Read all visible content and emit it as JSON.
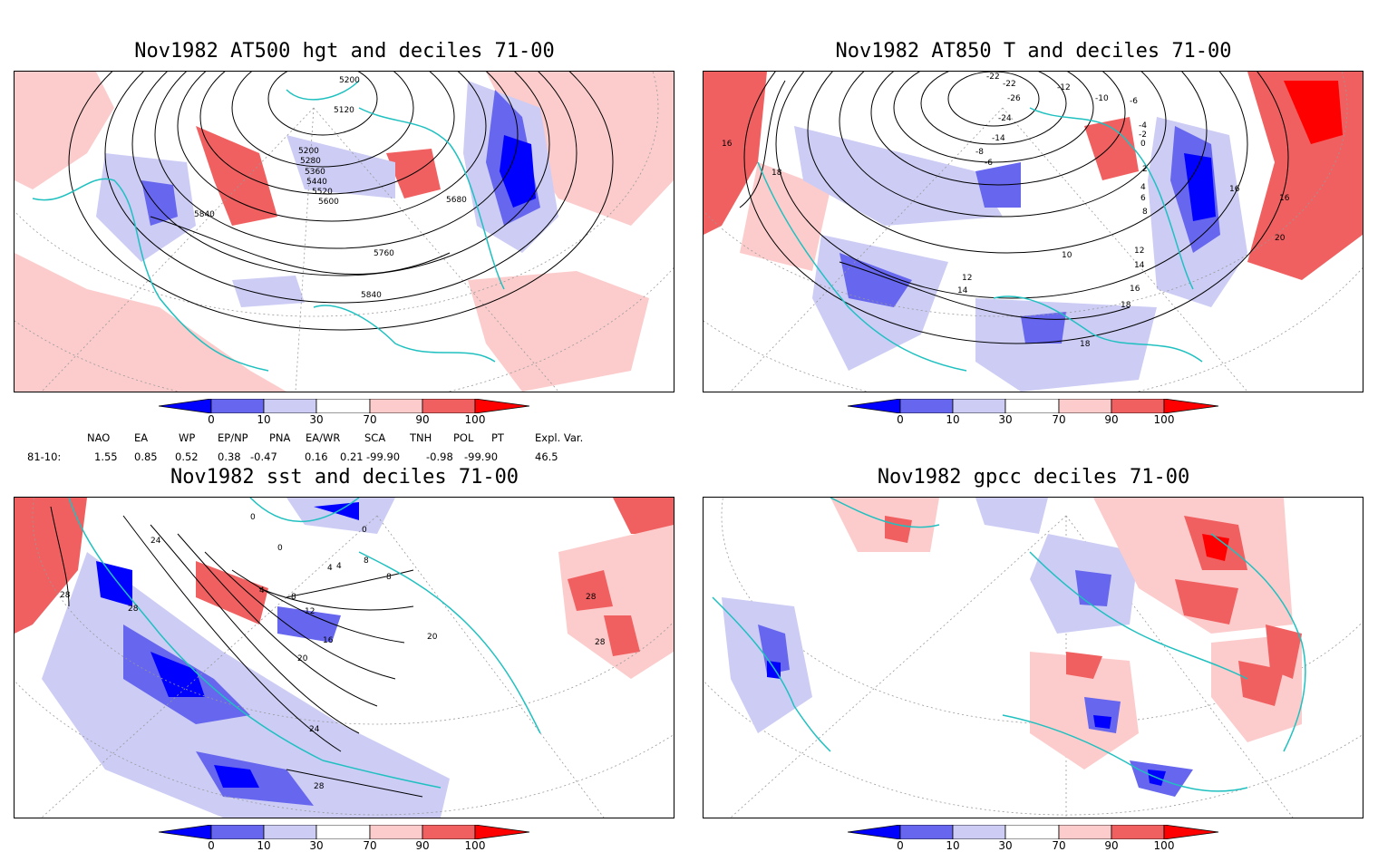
{
  "panels": [
    {
      "title": "Nov1982 AT500 hgt and deciles 71-00",
      "contour_labels": [
        "5200",
        "5120",
        "5200",
        "5280",
        "5360",
        "5440",
        "5520",
        "5600",
        "5680",
        "5760",
        "5840",
        "5840"
      ]
    },
    {
      "title": "Nov1982 AT850 T and deciles 71-00",
      "contour_labels": [
        "-22",
        "-22",
        "-26",
        "-24",
        "-12",
        "-10",
        "-6",
        "-14",
        "-8",
        "-6",
        "-4",
        "-2",
        "0",
        "2",
        "4",
        "6",
        "8",
        "10",
        "12",
        "12",
        "14",
        "14",
        "16",
        "16",
        "18",
        "18",
        "18",
        "20",
        "16",
        "16"
      ]
    },
    {
      "title": "Nov1982 sst and deciles 71-00",
      "contour_labels": [
        "0",
        "0",
        "0",
        "4",
        "4",
        "8",
        "8",
        "12",
        "16",
        "20",
        "20",
        "24",
        "24",
        "28",
        "28",
        "28",
        "28",
        "28",
        "4",
        "8"
      ]
    },
    {
      "title": "Nov1982 gpcc deciles 71-00",
      "contour_labels": []
    }
  ],
  "colorbar": {
    "tick_labels": [
      "0",
      "10",
      "30",
      "70",
      "90",
      "100"
    ],
    "colors": [
      "#0000ff",
      "#6666ee",
      "#ccccf5",
      "#ffffff",
      "#fccccc",
      "#f06060",
      "#ff0000"
    ]
  },
  "indices": {
    "headers": [
      "NAO",
      "EA",
      "WP",
      "EP/NP",
      "PNA",
      "EA/WR",
      "SCA",
      "TNH",
      "POL",
      "PT",
      "Expl. Var."
    ],
    "row_label": "81-10:",
    "values": [
      "1.55",
      "0.85",
      "0.52",
      "0.38",
      "-0.47",
      "0.16",
      "0.21",
      "-99.90",
      "-0.98",
      "-99.90",
      "46.5"
    ]
  },
  "colors": {
    "coast": "#20c0c0",
    "contour": "#000000",
    "grid": "#999999"
  }
}
